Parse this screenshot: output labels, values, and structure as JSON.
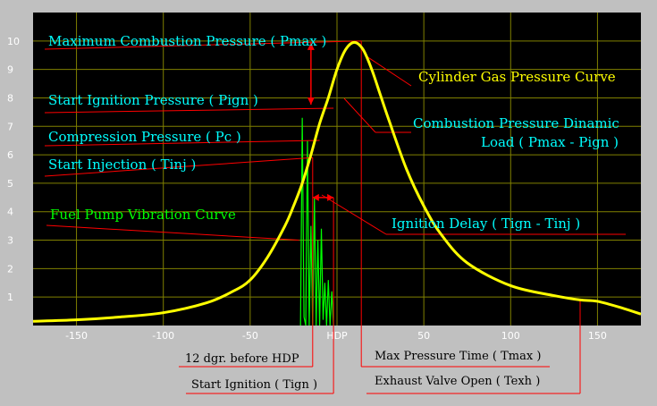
{
  "chart_data": {
    "type": "line",
    "xlim": [
      -175,
      175
    ],
    "ylim": [
      0,
      11
    ],
    "x_ticks": [
      -150,
      -100,
      -50,
      50,
      100,
      150
    ],
    "x_tick_hdp": "HDP",
    "y_ticks": [
      1,
      2,
      3,
      4,
      5,
      6,
      7,
      8,
      9,
      10
    ],
    "grid": true,
    "series": [
      {
        "name": "Cylinder Gas Pressure Curve",
        "color": "#ffff00",
        "x": [
          -175,
          -150,
          -125,
          -100,
          -75,
          -60,
          -50,
          -40,
          -30,
          -25,
          -20,
          -15,
          -10,
          -5,
          0,
          5,
          10,
          15,
          20,
          25,
          30,
          40,
          50,
          60,
          75,
          100,
          125,
          140,
          150,
          165,
          175
        ],
        "y": [
          0.15,
          0.2,
          0.3,
          0.45,
          0.8,
          1.2,
          1.6,
          2.4,
          3.5,
          4.2,
          5.0,
          6.0,
          7.1,
          8.0,
          9.0,
          9.7,
          9.95,
          9.7,
          9.0,
          8.1,
          7.2,
          5.5,
          4.2,
          3.2,
          2.2,
          1.4,
          1.05,
          0.9,
          0.85,
          0.6,
          0.4
        ]
      },
      {
        "name": "Fuel Pump Vibration Curve",
        "color": "#00ff00",
        "x": [
          -21,
          -20,
          -19,
          -18,
          -17,
          -16,
          -15,
          -14,
          -13,
          -12,
          -11,
          -10,
          -9,
          -8,
          -7,
          -6,
          -5,
          -4,
          -3,
          -2
        ],
        "y": [
          0,
          7.3,
          0.3,
          0,
          6.5,
          0,
          3.5,
          0,
          4.5,
          0,
          3.0,
          0,
          3.4,
          0.2,
          1.5,
          0,
          1.6,
          0,
          1.2,
          0
        ]
      }
    ],
    "markers": {
      "pmax": {
        "x": 14,
        "y": 10.0
      },
      "pign": {
        "x": -2,
        "y": 7.7
      },
      "pc": {
        "x": -10,
        "y": 6.6
      },
      "tinj": {
        "x": -14,
        "y": 5.9
      },
      "tign": {
        "x": -2,
        "y": 4.5
      },
      "texh": {
        "x": 140,
        "y": 0.9
      }
    },
    "annotations": {
      "pmax": "Maximum Combustion Pressure ( Pmax )",
      "pign": "Start Ignition Pressure ( Pign )",
      "pc": "Compression Pressure ( Pc )",
      "tinj": "Start Injection ( Tinj )",
      "fuel_pump": "Fuel Pump Vibration Curve",
      "gas_curve": "Cylinder Gas Pressure Curve",
      "dynamic_load_1": "Combustion Pressure Dinamic",
      "dynamic_load_2": "Load ( Pmax - Pign )",
      "ignition_delay": "Ignition Delay ( Tign - Tinj )",
      "before_hdp": "12 dgr. before HDP",
      "start_ignition": "Start Ignition ( Tign )",
      "tmax": "Max Pressure Time ( Tmax )",
      "texh": "Exhaust Valve Open ( Texh )"
    }
  }
}
